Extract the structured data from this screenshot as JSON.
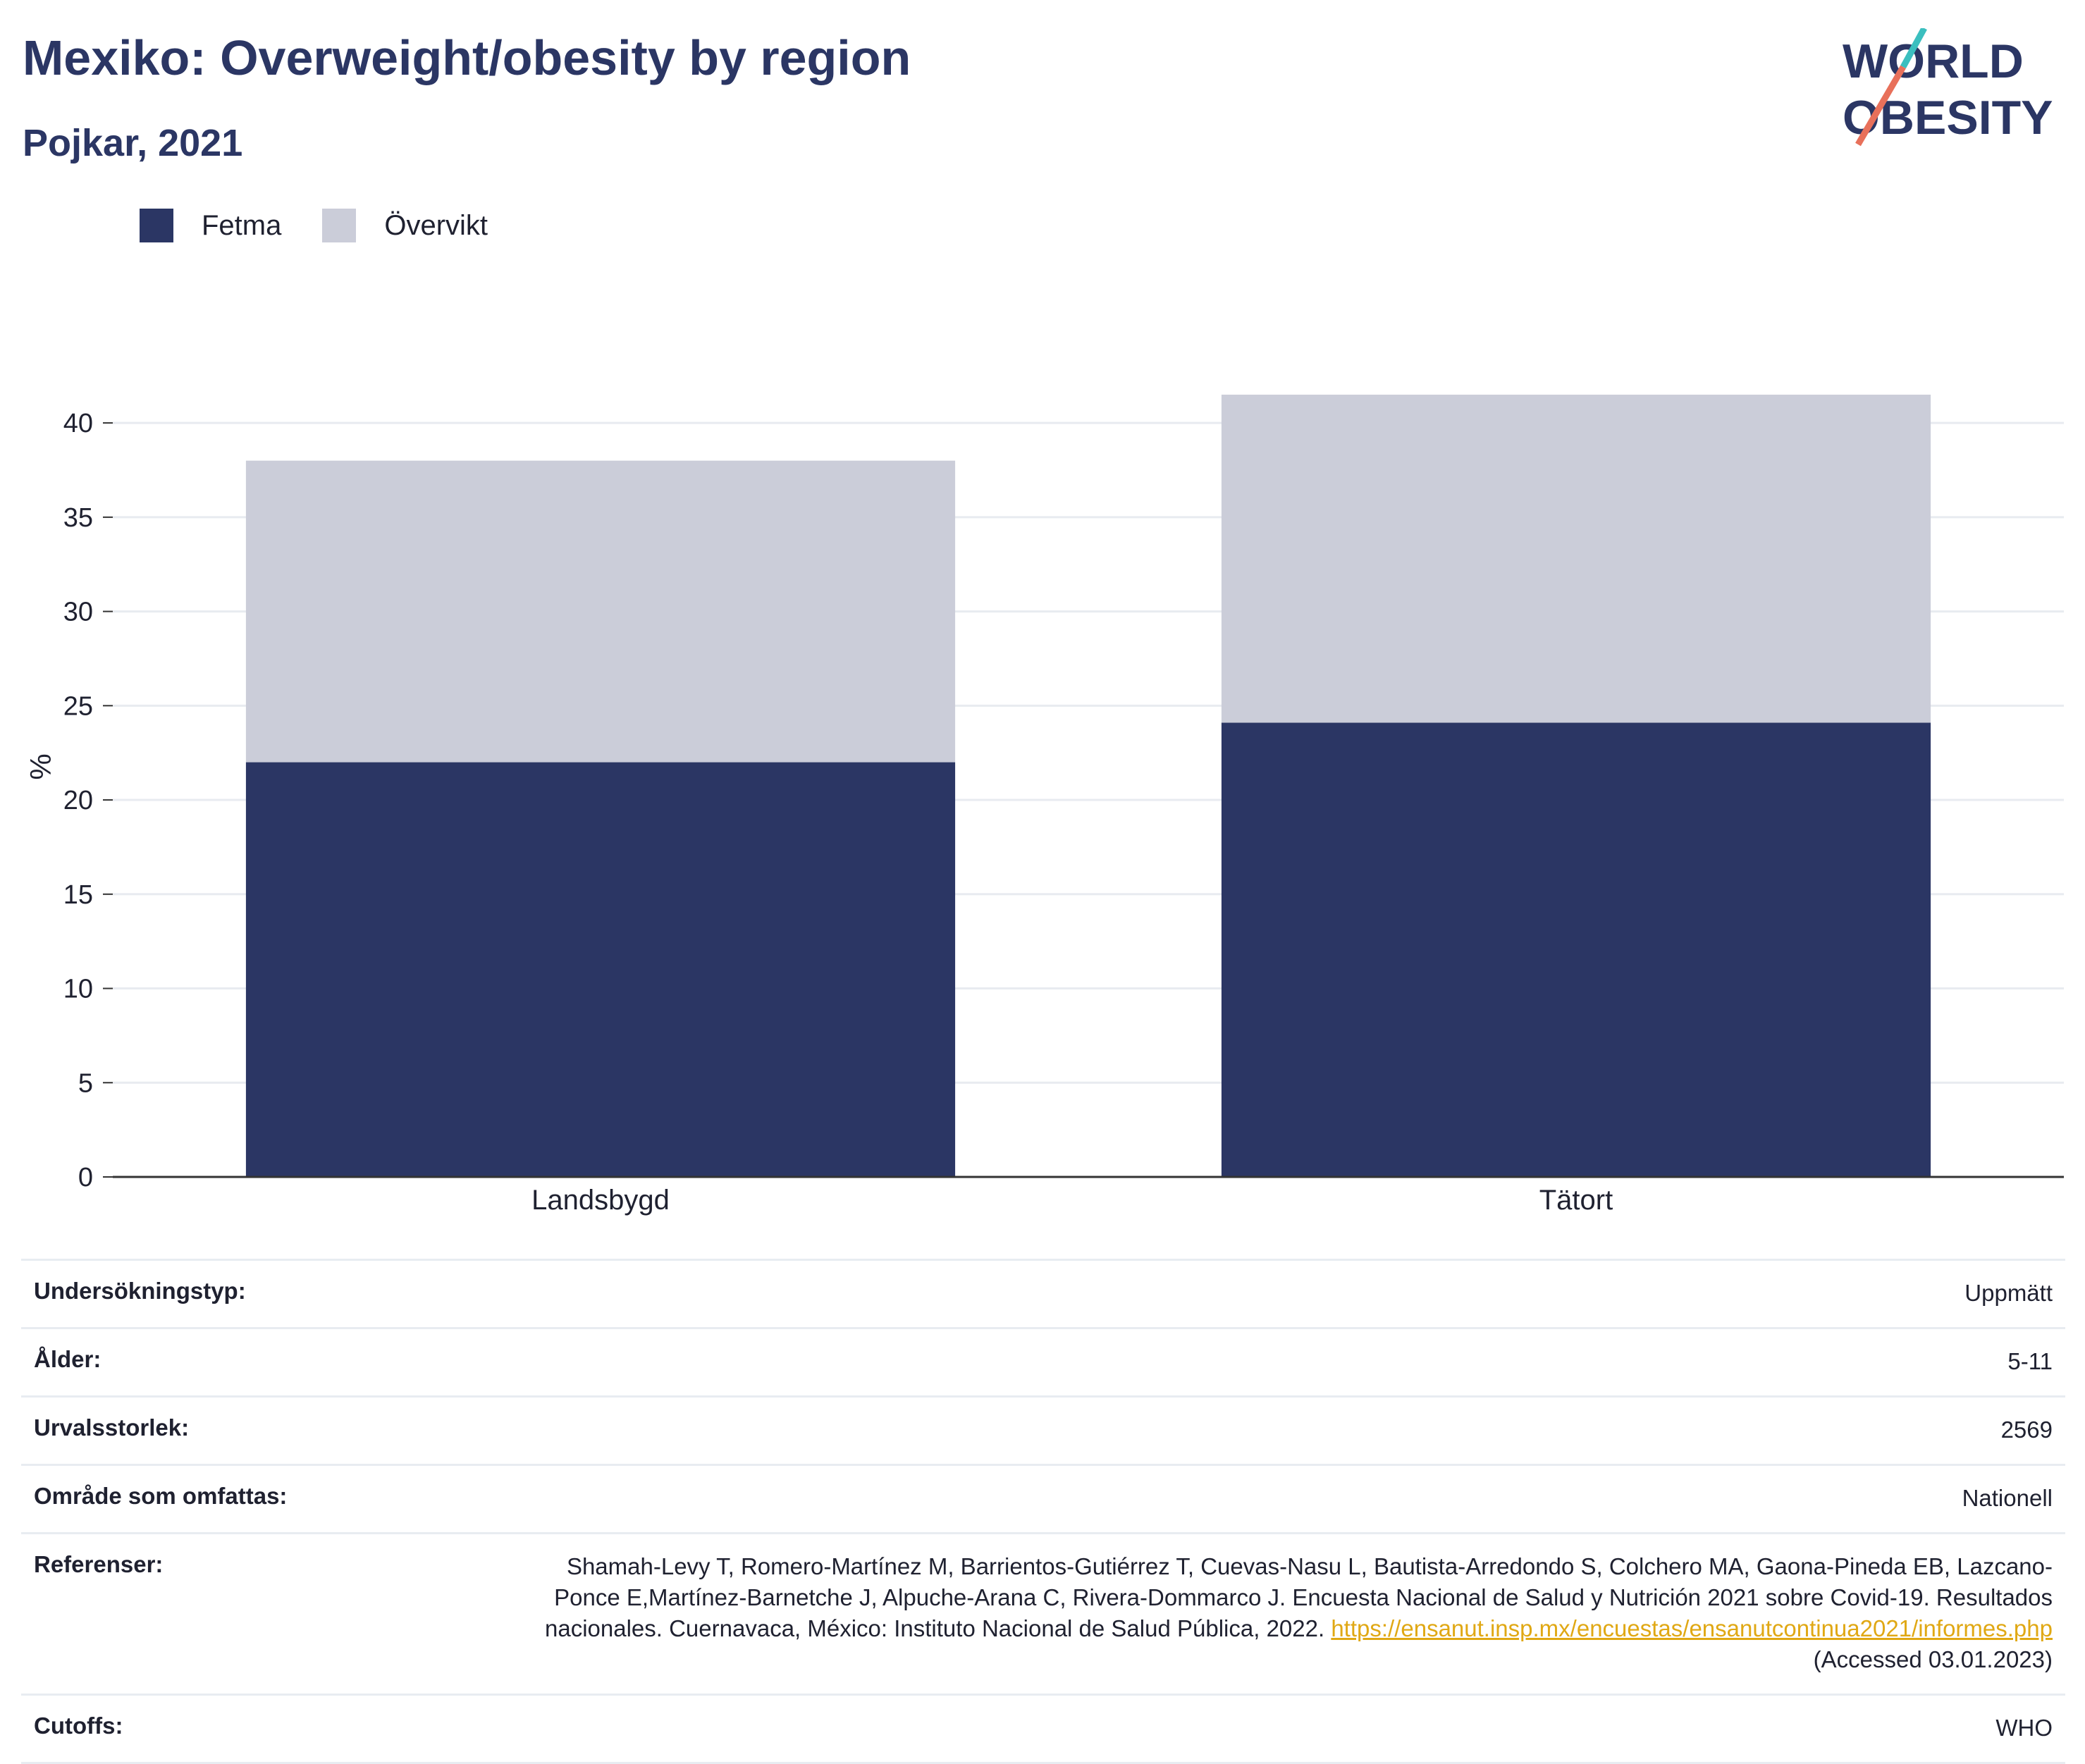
{
  "header": {
    "title": "Mexiko: Overweight/obesity by region",
    "subtitle": "Pojkar, 2021"
  },
  "logo": {
    "line1": "WORLD",
    "line2": "OBESITY",
    "colors": {
      "text": "#2b3664",
      "slash_top": "#3bbfbf",
      "slash_bottom": "#e8705a"
    }
  },
  "legend": [
    {
      "label": "Fetma",
      "color": "#2b3664"
    },
    {
      "label": "Övervikt",
      "color": "#cbcdd9"
    }
  ],
  "chart_data": {
    "type": "bar",
    "stacked": true,
    "categories": [
      "Landsbygd",
      "Tätort"
    ],
    "series": [
      {
        "name": "Fetma",
        "values": [
          22.0,
          24.1
        ],
        "color": "#2b3664"
      },
      {
        "name": "Övervikt",
        "values": [
          16.0,
          17.4
        ],
        "color": "#cbcdd9"
      }
    ],
    "ylabel": "%",
    "ylim": [
      0,
      41.5
    ],
    "yticks": [
      0,
      5,
      10,
      15,
      20,
      25,
      30,
      35,
      40
    ],
    "grid": true,
    "legend_position": "top-left"
  },
  "meta": {
    "survey_type": {
      "label": "Undersökningstyp:",
      "value": "Uppmätt"
    },
    "age": {
      "label": "Ålder:",
      "value": "5-11"
    },
    "sample_size": {
      "label": "Urvalsstorlek:",
      "value": "2569"
    },
    "area": {
      "label": "Område som omfattas:",
      "value": "Nationell"
    },
    "references": {
      "label": "Referenser:",
      "text": "Shamah-Levy T, Romero-Martínez M, Barrientos-Gutiérrez T, Cuevas-Nasu L, Bautista-Arredondo S, Colchero MA, Gaona-Pineda EB, Lazcano-Ponce E,Martínez-Barnetche J, Alpuche-Arana C, Rivera-Dommarco J. Encuesta Nacional de Salud y Nutrición 2021 sobre Covid-19. Resultados nacionales. Cuernavaca, México: Instituto Nacional de Salud Pública, 2022.",
      "link": "https://ensanut.insp.mx/encuestas/ensanutcontinua2021/informes.php",
      "accessed": "(Accessed 03.01.2023)"
    },
    "cutoffs": {
      "label": "Cutoffs:",
      "value": "WHO"
    }
  }
}
